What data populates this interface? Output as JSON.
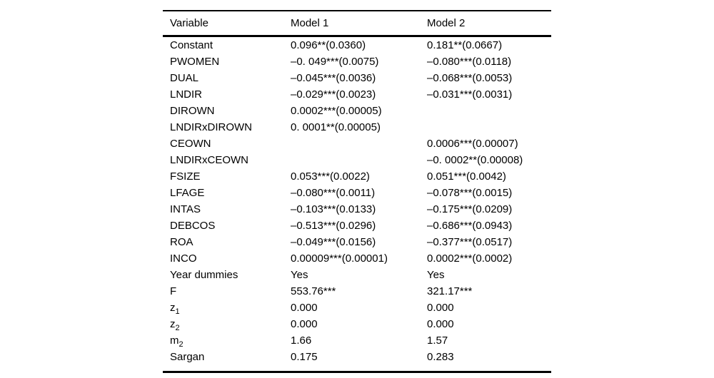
{
  "table": {
    "columns": [
      {
        "label": "Variable"
      },
      {
        "label": "Model 1"
      },
      {
        "label": "Model 2"
      }
    ],
    "rows": [
      {
        "label": "Constant",
        "sub": "",
        "m1": "0.096**(0.0360)",
        "m2": "0.181**(0.0667)"
      },
      {
        "label": "PWOMEN",
        "sub": "",
        "m1": "–0. 049***(0.0075)",
        "m2": "–0.080***(0.0118)"
      },
      {
        "label": "DUAL",
        "sub": "",
        "m1": "–0.045***(0.0036)",
        "m2": "–0.068***(0.0053)"
      },
      {
        "label": "LNDIR",
        "sub": "",
        "m1": "–0.029***(0.0023)",
        "m2": "–0.031***(0.0031)"
      },
      {
        "label": "DIROWN",
        "sub": "",
        "m1": "0.0002***(0.00005)",
        "m2": ""
      },
      {
        "label": "LNDIRxDIROWN",
        "sub": "",
        "m1": "0. 0001**(0.00005)",
        "m2": ""
      },
      {
        "label": "CEOWN",
        "sub": "",
        "m1": "",
        "m2": "0.0006***(0.00007)"
      },
      {
        "label": "LNDIRxCEOWN",
        "sub": "",
        "m1": "",
        "m2": "–0. 0002**(0.00008)"
      },
      {
        "label": "FSIZE",
        "sub": "",
        "m1": "0.053***(0.0022)",
        "m2": "0.051***(0.0042)"
      },
      {
        "label": "LFAGE",
        "sub": "",
        "m1": "–0.080***(0.0011)",
        "m2": "–0.078***(0.0015)"
      },
      {
        "label": "INTAS",
        "sub": "",
        "m1": "–0.103***(0.0133)",
        "m2": "–0.175***(0.0209)"
      },
      {
        "label": "DEBCOS",
        "sub": "",
        "m1": "–0.513***(0.0296)",
        "m2": "–0.686***(0.0943)"
      },
      {
        "label": "ROA",
        "sub": "",
        "m1": "–0.049***(0.0156)",
        "m2": "–0.377***(0.0517)"
      },
      {
        "label": "INCO",
        "sub": "",
        "m1": "0.00009***(0.00001)",
        "m2": "0.0002***(0.0002)"
      },
      {
        "label": "Year dummies",
        "sub": "",
        "m1": "Yes",
        "m2": "Yes"
      },
      {
        "label": "F",
        "sub": "",
        "m1": "553.76***",
        "m2": "321.17***"
      },
      {
        "label": "z",
        "sub": "1",
        "m1": "0.000",
        "m2": "0.000"
      },
      {
        "label": "z",
        "sub": "2",
        "m1": "0.000",
        "m2": "0.000"
      },
      {
        "label": "m",
        "sub": "2",
        "m1": "1.66",
        "m2": "1.57"
      },
      {
        "label": "Sargan",
        "sub": "",
        "m1": "0.175",
        "m2": "0.283"
      }
    ]
  },
  "colors": {
    "text": "#000000",
    "background": "#ffffff",
    "rule": "#000000"
  }
}
